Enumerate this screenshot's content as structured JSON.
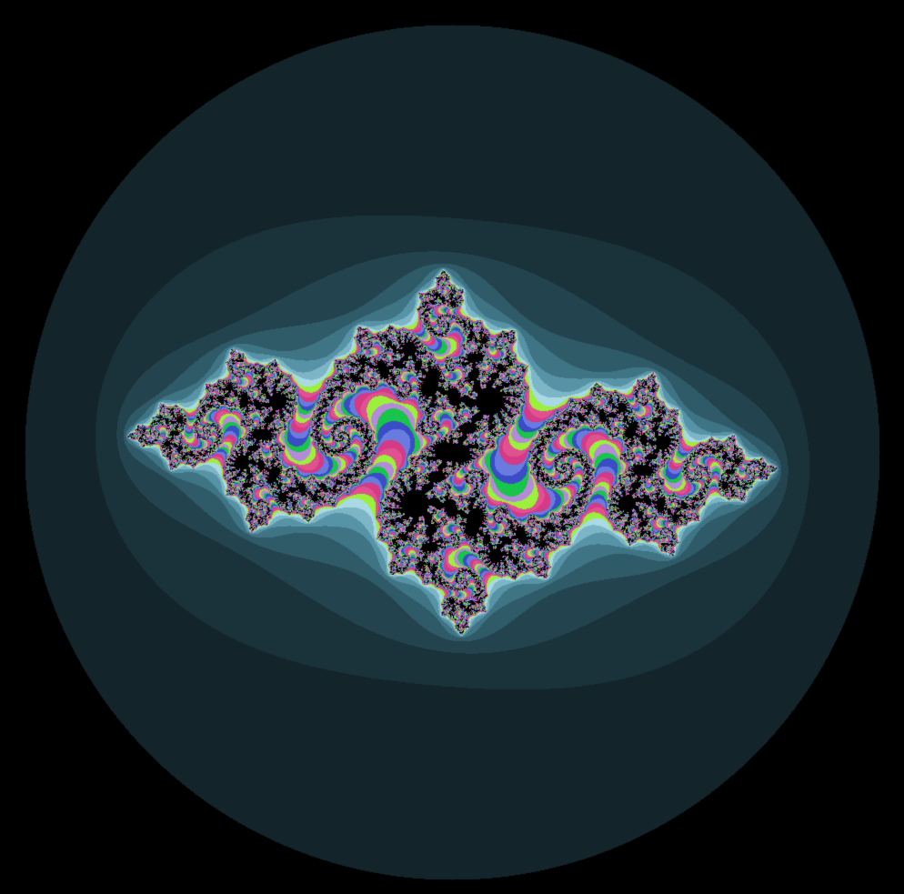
{
  "image": {
    "subject": "julia-set-fractal",
    "background_color": "#000000",
    "interior_color": "#000000"
  },
  "palette": {
    "outer_bands": [
      "#0e1a1e",
      "#13242a",
      "#1a323a",
      "#23444f",
      "#2f5a68",
      "#3f7485",
      "#5793a6",
      "#7cb6c6",
      "#a9d9e4"
    ],
    "inner_cycle": [
      "#9af03a",
      "#e0528f",
      "#d43a86",
      "#6a7be0",
      "#3a4cc6",
      "#19c44a",
      "#b58bd9"
    ]
  }
}
